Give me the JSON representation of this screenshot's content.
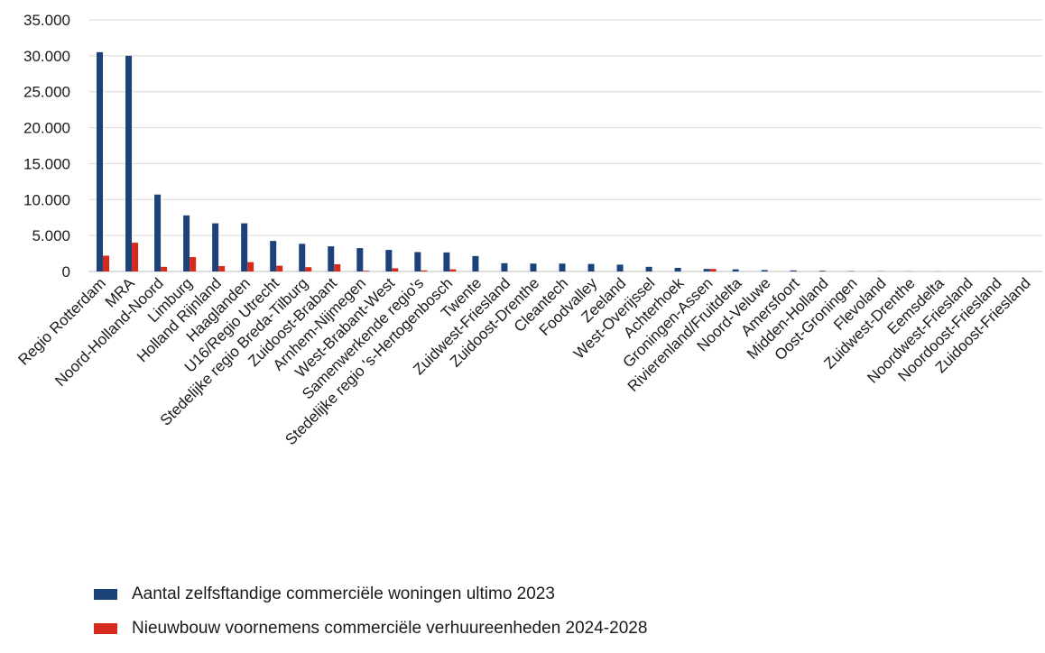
{
  "chart_data": {
    "type": "bar",
    "categories": [
      "Regio Rotterdam",
      "MRA",
      "Noord-Holland-Noord",
      "Limburg",
      "Holland Rijnland",
      "Haaglanden",
      "U16/Regio Utrecht",
      "Stedelijke regio Breda-Tilburg",
      "Zuidoost-Brabant",
      "Arnhem-Nijmegen",
      "West-Brabant-West",
      "Samenwerkende regio's",
      "Stedelijke regio 's-Hertogenbosch",
      "Twente",
      "Zuidwest-Friesland",
      "Zuidoost-Drenthe",
      "Cleantech",
      "Foodvalley",
      "Zeeland",
      "West-Overijssel",
      "Achterhoek",
      "Groningen-Assen",
      "Rivierenland/Fruitdelta",
      "Noord-Veluwe",
      "Amersfoort",
      "Midden-Holland",
      "Oost-Groningen",
      "Flevoland",
      "Zuidwest-Drenthe",
      "Eemsdelta",
      "Noordwest-Friesland",
      "Noordoost-Friesland",
      "Zuidoost-Friesland"
    ],
    "series": [
      {
        "name": "Aantal zelfsftandige commerciële woningen ultimo 2023",
        "color": "#1b4279",
        "values": [
          30500,
          30000,
          10700,
          7800,
          6700,
          6700,
          4250,
          3850,
          3500,
          3250,
          3000,
          2700,
          2650,
          2150,
          1150,
          1100,
          1100,
          1050,
          950,
          650,
          500,
          350,
          300,
          200,
          150,
          100,
          50,
          30,
          20,
          15,
          10,
          5,
          5
        ]
      },
      {
        "name": "Nieuwbouw voornemens commerciële verhuureenheden 2024-2028",
        "color": "#d52b1e",
        "values": [
          2200,
          4000,
          650,
          2000,
          750,
          1300,
          800,
          600,
          1000,
          100,
          450,
          150,
          300,
          0,
          0,
          0,
          0,
          0,
          0,
          0,
          0,
          350,
          0,
          0,
          0,
          0,
          0,
          0,
          0,
          0,
          0,
          0,
          0
        ]
      }
    ],
    "yticks": [
      "0",
      "5.000",
      "10.000",
      "15.000",
      "20.000",
      "25.000",
      "30.000",
      "35.000"
    ],
    "ylim": [
      0,
      35000
    ],
    "grid": true,
    "legend_position": "bottom-left"
  }
}
